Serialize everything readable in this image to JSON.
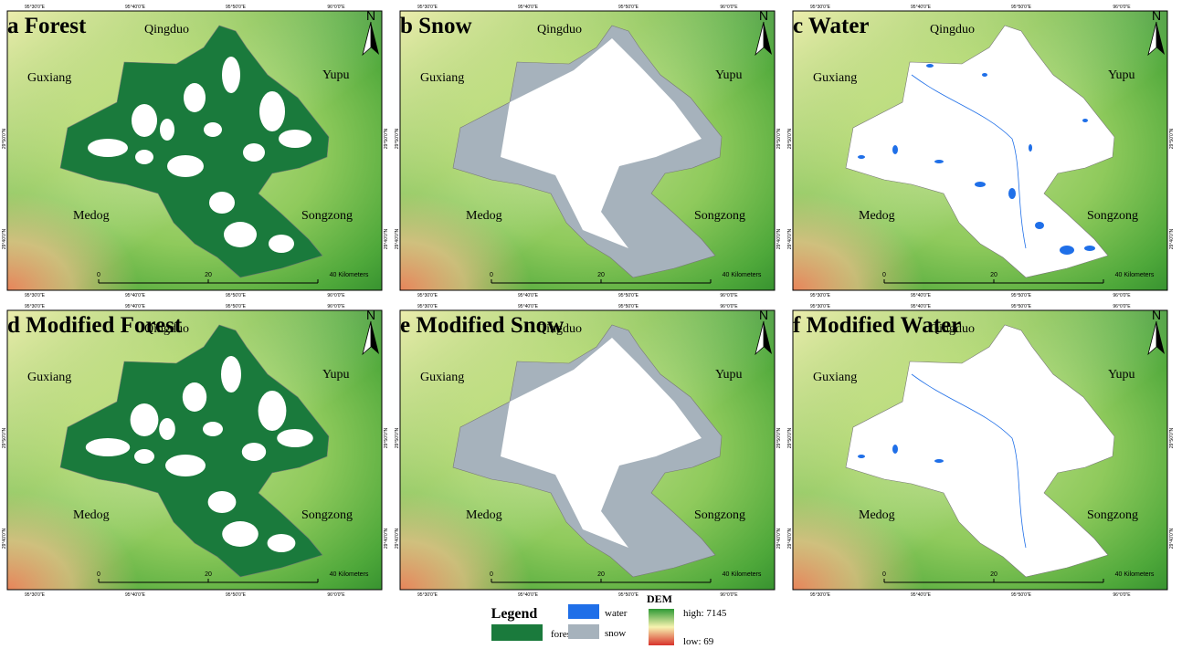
{
  "panels": [
    {
      "title": "a Forest",
      "kind": "forest"
    },
    {
      "title": "b Snow",
      "kind": "snow"
    },
    {
      "title": "c Water",
      "kind": "water"
    },
    {
      "title": "d Modified Forest",
      "kind": "forest"
    },
    {
      "title": "e Modified Snow",
      "kind": "snow"
    },
    {
      "title": "f Modified Water",
      "kind": "water"
    }
  ],
  "places": [
    "Qingduo",
    "Guxiang",
    "Yupu",
    "Medog",
    "Songzong"
  ],
  "north": "N",
  "scale_labels": [
    "0",
    "20",
    "40 Kilometers"
  ],
  "lon_labels": [
    "95°30'0\"E",
    "95°40'0\"E",
    "95°50'0\"E",
    "96°0'0\"E"
  ],
  "lat_labels": [
    "29°50'0\"N",
    "29°40'0\"N"
  ],
  "legend": {
    "title": "Legend",
    "forest": "forest",
    "water": "water",
    "snow": "snow",
    "dem": "DEM",
    "high": "high: 7145",
    "low": "low: 69"
  }
}
